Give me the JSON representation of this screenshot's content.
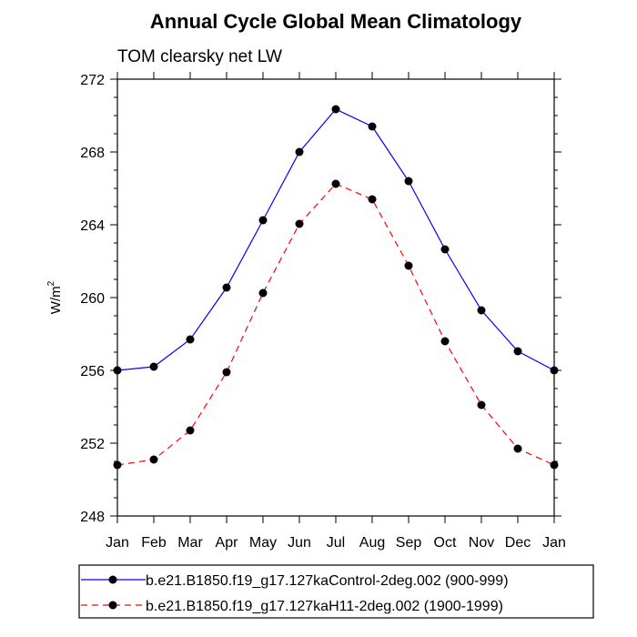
{
  "chart_data": {
    "type": "line",
    "title": "Annual Cycle Global Mean Climatology",
    "subtitle": "TOM clearsky net LW",
    "ylabel": "W/m",
    "ylabel_superscript": "2",
    "xlabel": "",
    "categories": [
      "Jan",
      "Feb",
      "Mar",
      "Apr",
      "May",
      "Jun",
      "Jul",
      "Aug",
      "Sep",
      "Oct",
      "Nov",
      "Dec",
      "Jan"
    ],
    "ylim": [
      248,
      272
    ],
    "yticks": [
      "248",
      "252",
      "256",
      "260",
      "264",
      "268",
      "272"
    ],
    "grid": false,
    "legend_position": "bottom",
    "series": [
      {
        "name": "b.e21.B1850.f19_g17.127kaControl-2deg.002 (900-999)",
        "color": "#0000ff",
        "style": "solid",
        "marker": "filled-circle",
        "values": [
          256.0,
          256.2,
          257.7,
          260.55,
          264.25,
          268.0,
          270.35,
          269.4,
          266.4,
          262.65,
          259.3,
          257.05,
          256.0
        ]
      },
      {
        "name": "b.e21.B1850.f19_g17.127kaH11-2deg.002 (1900-1999)",
        "color": "#ff0000",
        "style": "dashed",
        "marker": "filled-circle",
        "values": [
          250.8,
          251.1,
          252.7,
          255.9,
          260.25,
          264.05,
          266.25,
          265.4,
          261.75,
          257.6,
          254.1,
          251.7,
          250.8
        ]
      }
    ]
  }
}
